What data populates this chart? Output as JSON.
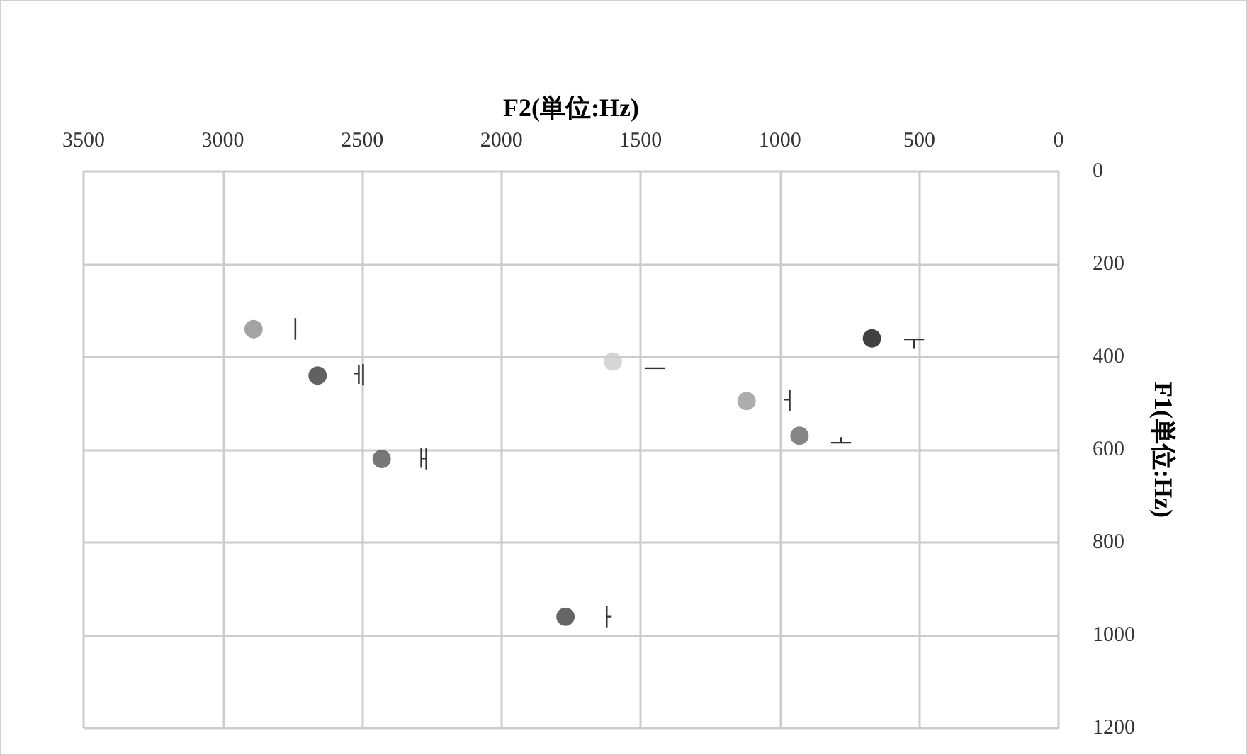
{
  "chart_data": {
    "type": "scatter",
    "xlabel": "F2(単位:Hz)",
    "ylabel": "F1(単位:Hz)",
    "xlim": [
      3500,
      0
    ],
    "xticks": [
      3500,
      3000,
      2500,
      2000,
      1500,
      1000,
      500,
      0
    ],
    "ylim": [
      1200,
      0
    ],
    "yticks": [
      0,
      200,
      400,
      600,
      800,
      1000,
      1200
    ],
    "grid": true,
    "legend": false,
    "marker": "circle",
    "series": [
      {
        "name": "ㅣ",
        "color": "#8c8c8c",
        "x": [
          2890
        ],
        "values": [
          340
        ]
      },
      {
        "name": "ㅔ",
        "color": "#3a3a3a",
        "x": [
          2660
        ],
        "values": [
          440
        ]
      },
      {
        "name": "ㅐ",
        "color": "#555555",
        "x": [
          2430
        ],
        "values": [
          620
        ]
      },
      {
        "name": "ㅡ",
        "color": "#cccccc",
        "x": [
          1600
        ],
        "values": [
          410
        ]
      },
      {
        "name": "ㅓ",
        "color": "#999999",
        "x": [
          1120
        ],
        "values": [
          495
        ]
      },
      {
        "name": "ㅗ",
        "color": "#666666",
        "x": [
          930
        ],
        "values": [
          570
        ]
      },
      {
        "name": "ㅜ",
        "color": "#111111",
        "x": [
          670
        ],
        "values": [
          360
        ]
      },
      {
        "name": "ㅏ",
        "color": "#404040",
        "x": [
          1770
        ],
        "values": [
          960
        ]
      }
    ]
  }
}
